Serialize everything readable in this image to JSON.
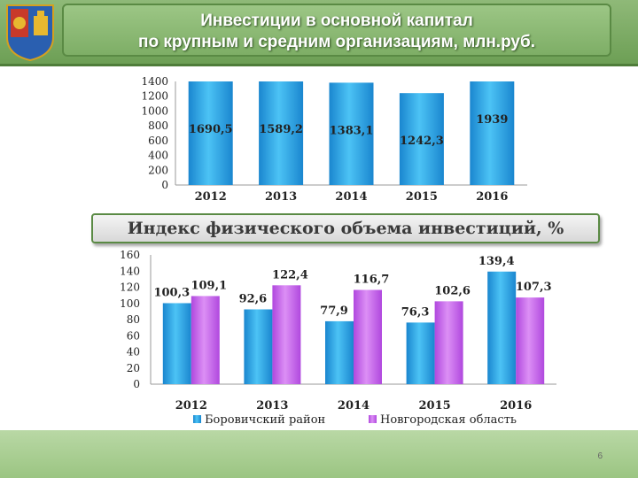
{
  "slide": {
    "title_line1": "Инвестиции в основной капитал",
    "title_line2": "по крупным и средним организациям, млн.руб.",
    "subtitle": "Индекс физического объема инвестиций, %",
    "page_number": "6"
  },
  "colors": {
    "blue": "#1f9ee0",
    "purple": "#c35be8",
    "banner": "#7eae66"
  },
  "chart_data": [
    {
      "type": "bar",
      "categories": [
        "2012",
        "2013",
        "2014",
        "2015",
        "2016"
      ],
      "values": [
        1690.5,
        1589.2,
        1383.1,
        1242.3,
        1939
      ],
      "value_labels": [
        "1690,5",
        "1589,2",
        "1383,1",
        "1242,3",
        "1939"
      ],
      "title": "Инвестиции в основной капитал по крупным и средним организациям, млн.руб.",
      "ylim": [
        0,
        1400
      ],
      "yticks": [
        0,
        200,
        400,
        600,
        800,
        1000,
        1200,
        1400
      ],
      "grid": false
    },
    {
      "type": "bar",
      "categories": [
        "2012",
        "2013",
        "2014",
        "2015",
        "2016"
      ],
      "series": [
        {
          "name": "Боровичский район",
          "values": [
            100.3,
            92.6,
            77.9,
            76.3,
            139.4
          ],
          "labels": [
            "100,3",
            "92,6",
            "77,9",
            "76,3",
            "139,4"
          ]
        },
        {
          "name": "Новгородская область",
          "values": [
            109.1,
            122.4,
            116.7,
            102.6,
            107.3
          ],
          "labels": [
            "109,1",
            "122,4",
            "116,7",
            "102,6",
            "107,3"
          ]
        }
      ],
      "title": "Индекс физического объема инвестиций, %",
      "ylim": [
        0,
        160
      ],
      "yticks": [
        0,
        20,
        40,
        60,
        80,
        100,
        120,
        140,
        160
      ],
      "legend": "bottom",
      "grid": false
    }
  ]
}
